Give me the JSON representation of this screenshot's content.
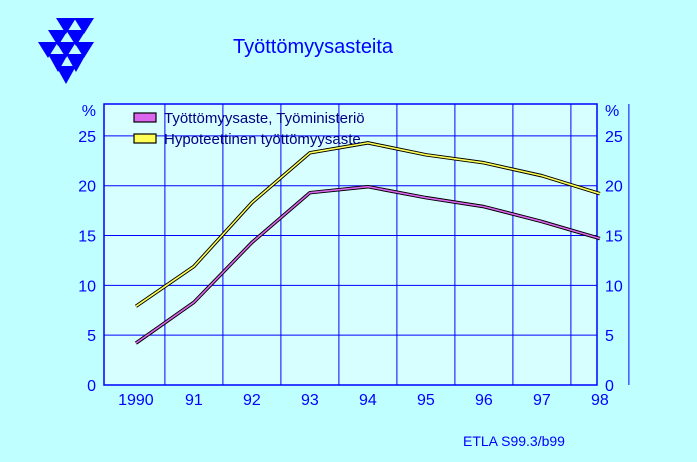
{
  "header": {
    "title": "Työttömyysasteita",
    "logo_icon": "etla-triangles-logo",
    "logo_color": "#0000ff"
  },
  "footer": {
    "credit": "ETLA S99.3/b99"
  },
  "colors": {
    "background": "#bfffff",
    "plot_background": "#d8ffff",
    "axis": "#0000ff",
    "series_1": "#dd66ee",
    "series_2": "#ffff55"
  },
  "chart_data": {
    "type": "line",
    "x": [
      "1990",
      "91",
      "92",
      "93",
      "94",
      "95",
      "96",
      "97",
      "98"
    ],
    "ylim": [
      0,
      25
    ],
    "yticks": [
      0,
      5,
      10,
      15,
      20,
      25
    ],
    "y_unit_left": "%",
    "y_unit_right": "%",
    "grid": true,
    "legend_position": "top-left",
    "series": [
      {
        "name": "Työttömyysaste, Työministeriö",
        "color": "#dd66ee",
        "values": [
          4.2,
          8.3,
          14.3,
          19.3,
          19.9,
          18.8,
          17.9,
          16.4,
          14.7
        ]
      },
      {
        "name": "Hypoteettinen työttömyysaste",
        "color": "#ffff55",
        "values": [
          7.9,
          11.9,
          18.3,
          23.3,
          24.3,
          23.1,
          22.3,
          21.0,
          19.2
        ]
      }
    ]
  }
}
